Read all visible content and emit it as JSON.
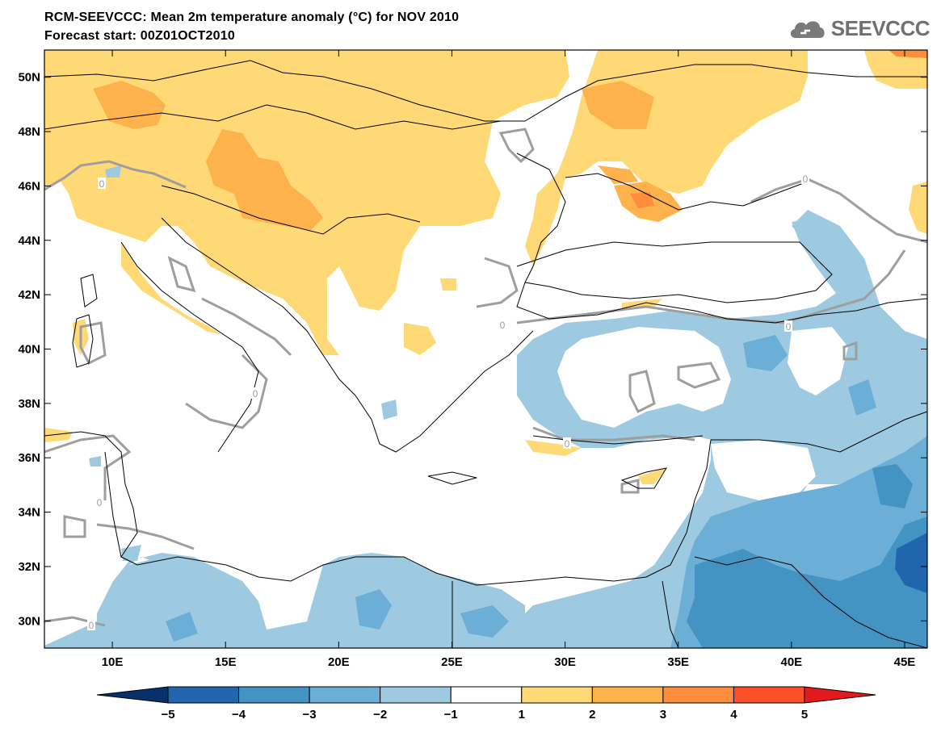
{
  "header": {
    "title": "RCM-SEEVCCC: Mean 2m temperature anomaly (°C) for NOV 2010",
    "subtitle": "Forecast start: 00Z01OCT2010",
    "logo_text": "SEEVCCC",
    "logo_icon": "cloud-icon"
  },
  "map": {
    "lon_range": [
      7,
      46
    ],
    "lat_range": [
      29,
      51
    ],
    "lon_ticks": [
      "10E",
      "15E",
      "20E",
      "25E",
      "30E",
      "35E",
      "40E",
      "45E"
    ],
    "lat_ticks": [
      "50N",
      "48N",
      "46N",
      "44N",
      "42N",
      "40N",
      "38N",
      "36N",
      "34N",
      "32N",
      "30N"
    ],
    "contour_label": "0"
  },
  "colorbar": {
    "labels": [
      "−5",
      "−4",
      "−3",
      "−2",
      "−1",
      "1",
      "2",
      "3",
      "4",
      "5"
    ],
    "colors": [
      "#08306b",
      "#2166ac",
      "#4393c3",
      "#6baed6",
      "#9ecae1",
      "#ffffff",
      "#fed976",
      "#feb24c",
      "#fd8d3c",
      "#fc4e2a",
      "#e31a1c"
    ]
  }
}
